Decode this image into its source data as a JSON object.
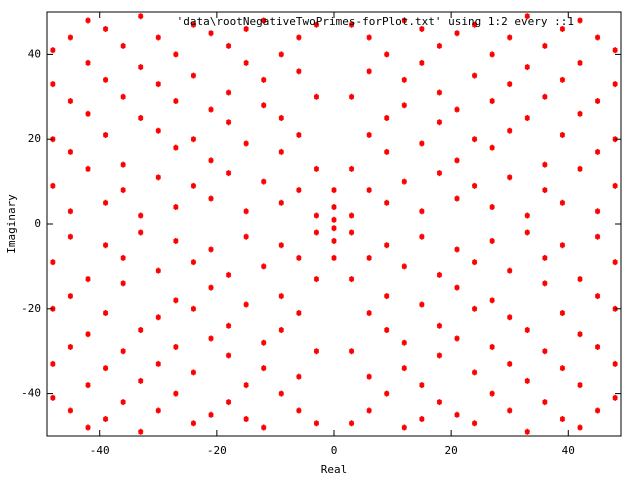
{
  "chart_data": {
    "type": "scatter",
    "xlabel": "Real",
    "ylabel": "Imaginary",
    "xlim": [
      -49,
      49
    ],
    "ylim": [
      -50,
      50
    ],
    "xticks": [
      -40,
      -20,
      0,
      20,
      40
    ],
    "yticks": [
      -40,
      -20,
      0,
      20,
      40
    ],
    "series": [
      {
        "name": "'data\\rootNegativeTwoPrimes-forPlot.txt' using 1:2 every ::1",
        "color": "#ff0000",
        "x": [
          3,
          3,
          3,
          3,
          3,
          3,
          3,
          3,
          -3,
          -3,
          -3,
          -3,
          -3,
          -3,
          -3,
          -3,
          6,
          6,
          6,
          6,
          6,
          6,
          6,
          6,
          -6,
          -6,
          -6,
          -6,
          -6,
          -6,
          -6,
          -6,
          9,
          9,
          9,
          9,
          9,
          9,
          9,
          9,
          -9,
          -9,
          -9,
          -9,
          -9,
          -9,
          -9,
          -9,
          12,
          12,
          12,
          12,
          12,
          12,
          12,
          12,
          -12,
          -12,
          -12,
          -12,
          -12,
          -12,
          -12,
          -12,
          15,
          15,
          15,
          15,
          15,
          15,
          15,
          15,
          -15,
          -15,
          -15,
          -15,
          -15,
          -15,
          -15,
          -15,
          18,
          18,
          18,
          18,
          18,
          18,
          18,
          18,
          -18,
          -18,
          -18,
          -18,
          -18,
          -18,
          -18,
          -18,
          21,
          21,
          21,
          21,
          21,
          21,
          21,
          21,
          -21,
          -21,
          -21,
          -21,
          -21,
          -21,
          -21,
          -21,
          24,
          24,
          24,
          24,
          24,
          24,
          24,
          24,
          -24,
          -24,
          -24,
          -24,
          -24,
          -24,
          -24,
          -24,
          27,
          27,
          27,
          27,
          27,
          27,
          27,
          27,
          -27,
          -27,
          -27,
          -27,
          -27,
          -27,
          -27,
          -27,
          30,
          30,
          30,
          30,
          30,
          30,
          30,
          30,
          -30,
          -30,
          -30,
          -30,
          -30,
          -30,
          -30,
          -30,
          33,
          33,
          33,
          33,
          33,
          33,
          33,
          33,
          -33,
          -33,
          -33,
          -33,
          -33,
          -33,
          -33,
          -33,
          36,
          36,
          36,
          36,
          36,
          36,
          36,
          36,
          -36,
          -36,
          -36,
          -36,
          -36,
          -36,
          -36,
          -36,
          39,
          39,
          39,
          39,
          39,
          39,
          39,
          39,
          -39,
          -39,
          -39,
          -39,
          -39,
          -39,
          -39,
          -39,
          42,
          42,
          42,
          42,
          42,
          42,
          42,
          42,
          -42,
          -42,
          -42,
          -42,
          -42,
          -42,
          -42,
          -42,
          45,
          45,
          45,
          45,
          45,
          45,
          45,
          45,
          -45,
          -45,
          -45,
          -45,
          -45,
          -45,
          -45,
          -45,
          48,
          48,
          48,
          48,
          48,
          48,
          48,
          48,
          -48,
          -48,
          -48,
          -48,
          -48,
          -48,
          -48,
          -48,
          0,
          0,
          0,
          0,
          0,
          0
        ],
        "y": [
          2,
          13,
          30,
          47,
          -2,
          -13,
          -30,
          -47,
          2,
          13,
          30,
          47,
          -2,
          -13,
          -30,
          -47,
          8,
          21,
          36,
          44,
          -8,
          -21,
          -36,
          -44,
          8,
          21,
          36,
          44,
          -8,
          -21,
          -36,
          -44,
          5,
          17,
          25,
          40,
          -5,
          -17,
          -25,
          -40,
          5,
          17,
          25,
          40,
          -5,
          -17,
          -25,
          -40,
          10,
          28,
          34,
          48,
          -10,
          -28,
          -34,
          -48,
          10,
          28,
          34,
          48,
          -10,
          -28,
          -34,
          -48,
          3,
          19,
          38,
          46,
          -3,
          -19,
          -38,
          -46,
          3,
          19,
          38,
          46,
          -3,
          -19,
          -38,
          -46,
          12,
          24,
          31,
          42,
          -12,
          -24,
          -31,
          -42,
          12,
          24,
          31,
          42,
          -12,
          -24,
          -31,
          -42,
          6,
          15,
          27,
          45,
          -6,
          -15,
          -27,
          -45,
          6,
          15,
          27,
          45,
          -6,
          -15,
          -27,
          -45,
          9,
          20,
          35,
          47,
          -9,
          -20,
          -35,
          -47,
          9,
          20,
          35,
          47,
          -9,
          -20,
          -35,
          -47,
          4,
          18,
          29,
          40,
          -4,
          -18,
          -29,
          -40,
          4,
          18,
          29,
          40,
          -4,
          -18,
          -29,
          -40,
          11,
          22,
          33,
          44,
          -11,
          -22,
          -33,
          -44,
          11,
          22,
          33,
          44,
          -11,
          -22,
          -33,
          -44,
          2,
          25,
          37,
          49,
          -2,
          -25,
          -37,
          -49,
          2,
          25,
          37,
          49,
          -2,
          -25,
          -37,
          -49,
          8,
          14,
          30,
          42,
          -8,
          -14,
          -30,
          -42,
          8,
          14,
          30,
          42,
          -8,
          -14,
          -30,
          -42,
          5,
          21,
          34,
          46,
          -5,
          -21,
          -34,
          -46,
          5,
          21,
          34,
          46,
          -5,
          -21,
          -34,
          -46,
          13,
          26,
          38,
          48,
          -13,
          -26,
          -38,
          -48,
          13,
          26,
          38,
          48,
          -13,
          -26,
          -38,
          -48,
          3,
          17,
          29,
          44,
          -3,
          -17,
          -29,
          -44,
          3,
          17,
          29,
          44,
          -3,
          -17,
          -29,
          -44,
          9,
          20,
          33,
          41,
          -9,
          -20,
          -33,
          -41,
          9,
          20,
          33,
          41,
          -9,
          -20,
          -33,
          -41,
          1,
          -1,
          4,
          -4,
          8,
          -8
        ]
      }
    ]
  }
}
